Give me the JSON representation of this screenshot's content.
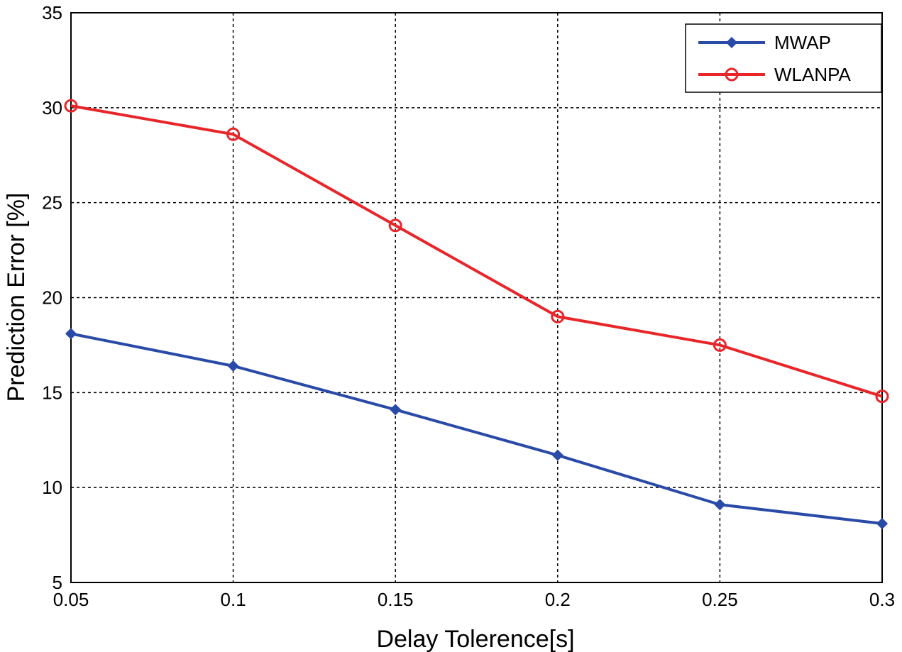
{
  "chart_data": {
    "type": "line",
    "title": "",
    "xlabel": "Delay Tolerence[s]",
    "ylabel": "Prediction Error [%]",
    "x": [
      0.05,
      0.1,
      0.15,
      0.2,
      0.25,
      0.3
    ],
    "xlim": [
      0.05,
      0.3
    ],
    "ylim": [
      5,
      35
    ],
    "xticks": [
      "0.05",
      "0.1",
      "0.15",
      "0.2",
      "0.25",
      "0.3"
    ],
    "yticks": [
      "5",
      "10",
      "15",
      "20",
      "25",
      "30",
      "35"
    ],
    "xtick_values": [
      0.05,
      0.1,
      0.15,
      0.2,
      0.25,
      0.3
    ],
    "ytick_values": [
      5,
      10,
      15,
      20,
      25,
      30,
      35
    ],
    "grid": true,
    "legend_position": "top-right",
    "series": [
      {
        "name": "MWAP",
        "color": "#2a4aa8",
        "marker": "diamond",
        "values": [
          18.1,
          16.4,
          14.1,
          11.7,
          9.1,
          8.1
        ]
      },
      {
        "name": "WLANPA",
        "color": "#e8262a",
        "marker": "circle",
        "values": [
          30.1,
          28.6,
          23.8,
          19.0,
          17.5,
          14.8
        ]
      }
    ]
  }
}
